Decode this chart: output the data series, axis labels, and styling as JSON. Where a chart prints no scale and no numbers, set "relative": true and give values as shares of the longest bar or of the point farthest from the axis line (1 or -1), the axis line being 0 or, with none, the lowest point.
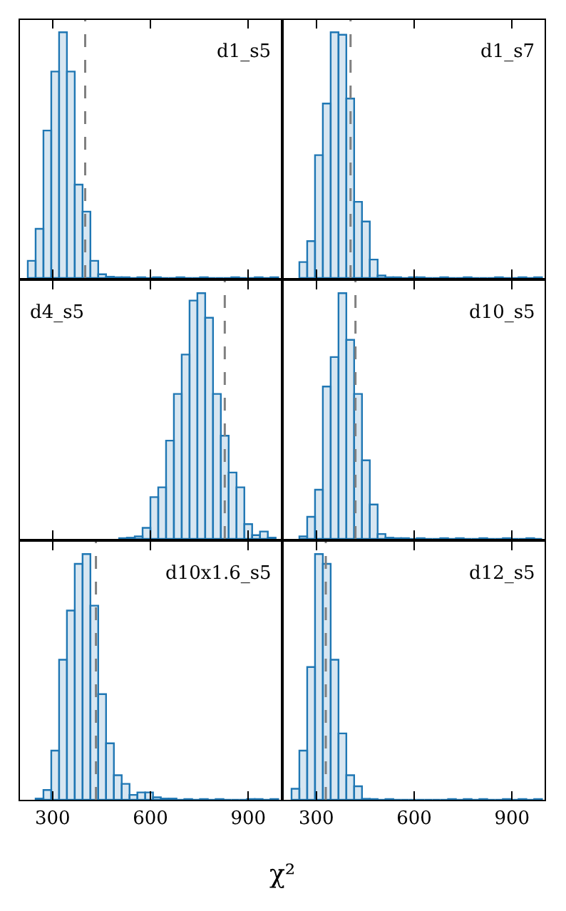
{
  "chart_data": [
    {
      "type": "bar",
      "annotations": [
        "d1_s5"
      ],
      "relative": true,
      "color": "#1f77b4",
      "xlim": [
        200,
        1000
      ],
      "xticks": [
        300,
        600,
        900
      ],
      "tick_labels": false,
      "grid": false,
      "ref_lines": [
        {
          "axis": "x",
          "value": 400,
          "color": "#808080",
          "line_style": "dashed"
        }
      ],
      "x": [
        236,
        260,
        284,
        308,
        332,
        356,
        380,
        404,
        428,
        452,
        476,
        500,
        524,
        548,
        572,
        596,
        620,
        644,
        668,
        692,
        716,
        740,
        764,
        788,
        812,
        836,
        860,
        884,
        908,
        932,
        956,
        980
      ],
      "values": [
        0.07,
        0.2,
        0.6,
        0.84,
        1.0,
        0.84,
        0.38,
        0.27,
        0.07,
        0.015,
        0.005,
        0.003,
        0.003,
        0,
        0.003,
        0,
        0.003,
        0,
        0,
        0.003,
        0,
        0,
        0.003,
        0,
        0,
        0,
        0.003,
        0,
        0,
        0.003,
        0,
        0.003
      ]
    },
    {
      "type": "bar",
      "annotations": [
        "d1_s7"
      ],
      "relative": true,
      "color": "#1f77b4",
      "xlim": [
        200,
        1000
      ],
      "xticks": [
        300,
        600,
        900
      ],
      "tick_labels": false,
      "grid": false,
      "ref_lines": [
        {
          "axis": "x",
          "value": 405,
          "color": "#808080",
          "line_style": "dashed"
        }
      ],
      "x": [
        260,
        284,
        308,
        332,
        356,
        380,
        404,
        428,
        452,
        476,
        500,
        524,
        548,
        572,
        596,
        620,
        644,
        668,
        692,
        716,
        740,
        764,
        788,
        812,
        836,
        860,
        884,
        908,
        932,
        956,
        980
      ],
      "values": [
        0.065,
        0.15,
        0.5,
        0.71,
        1.0,
        0.99,
        0.73,
        0.31,
        0.23,
        0.075,
        0.01,
        0.003,
        0.003,
        0,
        0.003,
        0.003,
        0,
        0,
        0.003,
        0,
        0,
        0.003,
        0,
        0,
        0,
        0.003,
        0,
        0,
        0.003,
        0,
        0.003
      ]
    },
    {
      "type": "bar",
      "annotations": [
        "d4_s5"
      ],
      "relative": true,
      "color": "#1f77b4",
      "xlim": [
        200,
        1000
      ],
      "xticks": [
        300,
        600,
        900
      ],
      "tick_labels": false,
      "grid": false,
      "ref_lines": [
        {
          "axis": "x",
          "value": 828,
          "color": "#808080",
          "line_style": "dashed"
        }
      ],
      "x": [
        516,
        540,
        564,
        588,
        612,
        636,
        660,
        684,
        708,
        732,
        756,
        780,
        804,
        828,
        852,
        876,
        900,
        924,
        948,
        972
      ],
      "values": [
        0.003,
        0.005,
        0.01,
        0.045,
        0.17,
        0.21,
        0.4,
        0.59,
        0.75,
        0.97,
        1.0,
        0.9,
        0.59,
        0.42,
        0.27,
        0.21,
        0.06,
        0.015,
        0.03,
        0.005
      ]
    },
    {
      "type": "bar",
      "annotations": [
        "d10_s5"
      ],
      "relative": true,
      "color": "#1f77b4",
      "xlim": [
        200,
        1000
      ],
      "xticks": [
        300,
        600,
        900
      ],
      "tick_labels": false,
      "grid": false,
      "ref_lines": [
        {
          "axis": "x",
          "value": 420,
          "color": "#808080",
          "line_style": "dashed"
        }
      ],
      "x": [
        260,
        284,
        308,
        332,
        356,
        380,
        404,
        428,
        452,
        476,
        500,
        524,
        548,
        572,
        596,
        620,
        644,
        668,
        692,
        716,
        740,
        764,
        788,
        812,
        836,
        860,
        884,
        908,
        932,
        956,
        980
      ],
      "values": [
        0.01,
        0.09,
        0.2,
        0.62,
        0.74,
        1.0,
        0.81,
        0.59,
        0.32,
        0.14,
        0.02,
        0.005,
        0.003,
        0.003,
        0,
        0.003,
        0,
        0,
        0.003,
        0,
        0.003,
        0,
        0,
        0.003,
        0,
        0,
        0.003,
        0,
        0,
        0.003,
        0
      ]
    },
    {
      "type": "bar",
      "annotations": [
        "d10x1.6_s5"
      ],
      "relative": true,
      "color": "#1f77b4",
      "xlabel": "χ²",
      "xlim": [
        200,
        1000
      ],
      "xticks": [
        300,
        600,
        900
      ],
      "tick_labels": "x",
      "grid": false,
      "ref_lines": [
        {
          "axis": "x",
          "value": 433,
          "color": "#808080",
          "line_style": "dashed"
        }
      ],
      "x": [
        260,
        284,
        308,
        332,
        356,
        380,
        404,
        428,
        452,
        476,
        500,
        524,
        548,
        572,
        596,
        620,
        644,
        668,
        692,
        716,
        740,
        764,
        788,
        812,
        836,
        860,
        884,
        908,
        932,
        956,
        980
      ],
      "values": [
        0.005,
        0.04,
        0.2,
        0.57,
        0.77,
        0.96,
        1.0,
        0.79,
        0.43,
        0.23,
        0.1,
        0.065,
        0.02,
        0.03,
        0.03,
        0.01,
        0.005,
        0.005,
        0,
        0.003,
        0,
        0.003,
        0,
        0.003,
        0,
        0,
        0,
        0.003,
        0.003,
        0,
        0.003
      ]
    },
    {
      "type": "bar",
      "annotations": [
        "d12_s5"
      ],
      "relative": true,
      "color": "#1f77b4",
      "xlim": [
        200,
        1000
      ],
      "xticks": [
        300,
        600,
        900
      ],
      "tick_labels": "x",
      "grid": false,
      "ref_lines": [
        {
          "axis": "x",
          "value": 329,
          "color": "#808080",
          "line_style": "dashed"
        }
      ],
      "x": [
        236,
        260,
        284,
        308,
        332,
        356,
        380,
        404,
        428,
        452,
        476,
        500,
        524,
        548,
        572,
        596,
        620,
        644,
        668,
        692,
        716,
        740,
        764,
        788,
        812,
        836,
        860,
        884,
        908,
        932,
        956,
        980
      ],
      "values": [
        0.045,
        0.2,
        0.54,
        1.0,
        0.96,
        0.57,
        0.27,
        0.1,
        0.055,
        0.004,
        0.003,
        0,
        0.003,
        0,
        0,
        0,
        0,
        0,
        0,
        0,
        0.003,
        0,
        0.003,
        0,
        0.003,
        0,
        0,
        0.003,
        0,
        0.003,
        0,
        0.003
      ]
    }
  ]
}
